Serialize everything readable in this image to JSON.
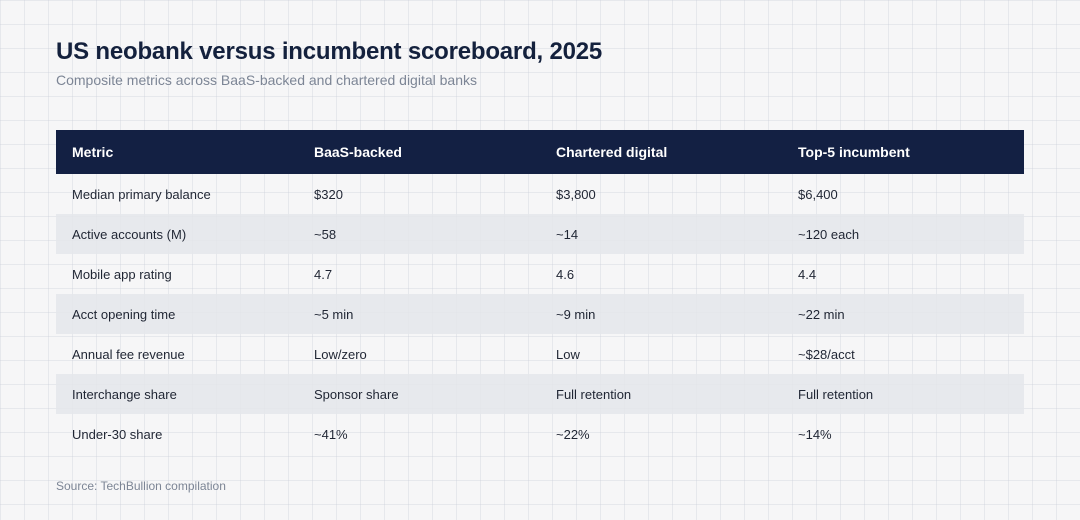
{
  "title": "US neobank versus incumbent scoreboard, 2025",
  "subtitle": "Composite metrics across BaaS-backed and chartered digital banks",
  "source": "Source: TechBullion compilation",
  "chart_data": {
    "type": "table",
    "columns": [
      "Metric",
      "BaaS-backed",
      "Chartered digital",
      "Top-5 incumbent"
    ],
    "rows": [
      [
        "Median primary balance",
        "$320",
        "$3,800",
        "$6,400"
      ],
      [
        "Active accounts (M)",
        "~58",
        "~14",
        "~120 each"
      ],
      [
        "Mobile app rating",
        "4.7",
        "4.6",
        "4.4"
      ],
      [
        "Acct opening time",
        "~5 min",
        "~9 min",
        "~22 min"
      ],
      [
        "Annual fee revenue",
        "Low/zero",
        "Low",
        "~$28/acct"
      ],
      [
        "Interchange share",
        "Sponsor share",
        "Full retention",
        "Full retention"
      ],
      [
        "Under-30 share",
        "~41%",
        "~22%",
        "~14%"
      ]
    ]
  }
}
